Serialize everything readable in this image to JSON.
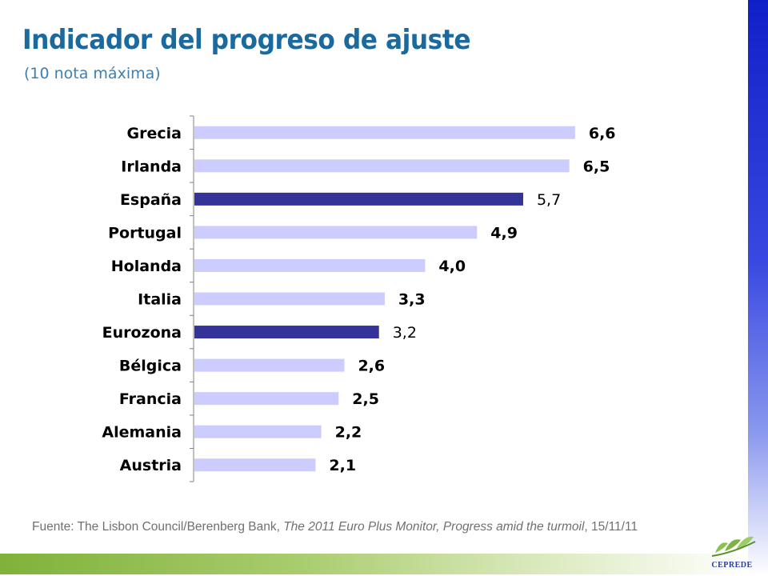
{
  "header": {
    "title": "Indicador del progreso de ajuste",
    "subtitle": "(10 nota máxima)"
  },
  "chart_data": {
    "type": "bar",
    "orientation": "horizontal",
    "title": "",
    "xlabel": "",
    "ylabel": "",
    "xlim": [
      0,
      7
    ],
    "grid": false,
    "categories": [
      "Grecia",
      "Irlanda",
      "España",
      "Portugal",
      "Holanda",
      "Italia",
      "Eurozona",
      "Bélgica",
      "Francia",
      "Alemania",
      "Austria"
    ],
    "values": [
      6.6,
      6.5,
      5.7,
      4.9,
      4.0,
      3.3,
      3.2,
      2.6,
      2.5,
      2.2,
      2.1
    ],
    "value_labels": [
      "6,6",
      "6,5",
      "5,7",
      "4,9",
      "4,0",
      "3,3",
      "3,2",
      "2,6",
      "2,5",
      "2,2",
      "2,1"
    ],
    "highlighted": [
      "España",
      "Eurozona"
    ],
    "colors": {
      "default_bar": "#ccccff",
      "highlight_bar": "#333399",
      "axis": "#808080",
      "label": "#000000"
    }
  },
  "footer": {
    "prefix": "Fuente: The Lisbon Council/Berenberg Bank, ",
    "publication": "The 2011 Euro Plus Monitor, Progress amid the turmoil",
    "suffix": ", 15/11/11"
  },
  "logo": {
    "text": "CEPREDE"
  }
}
